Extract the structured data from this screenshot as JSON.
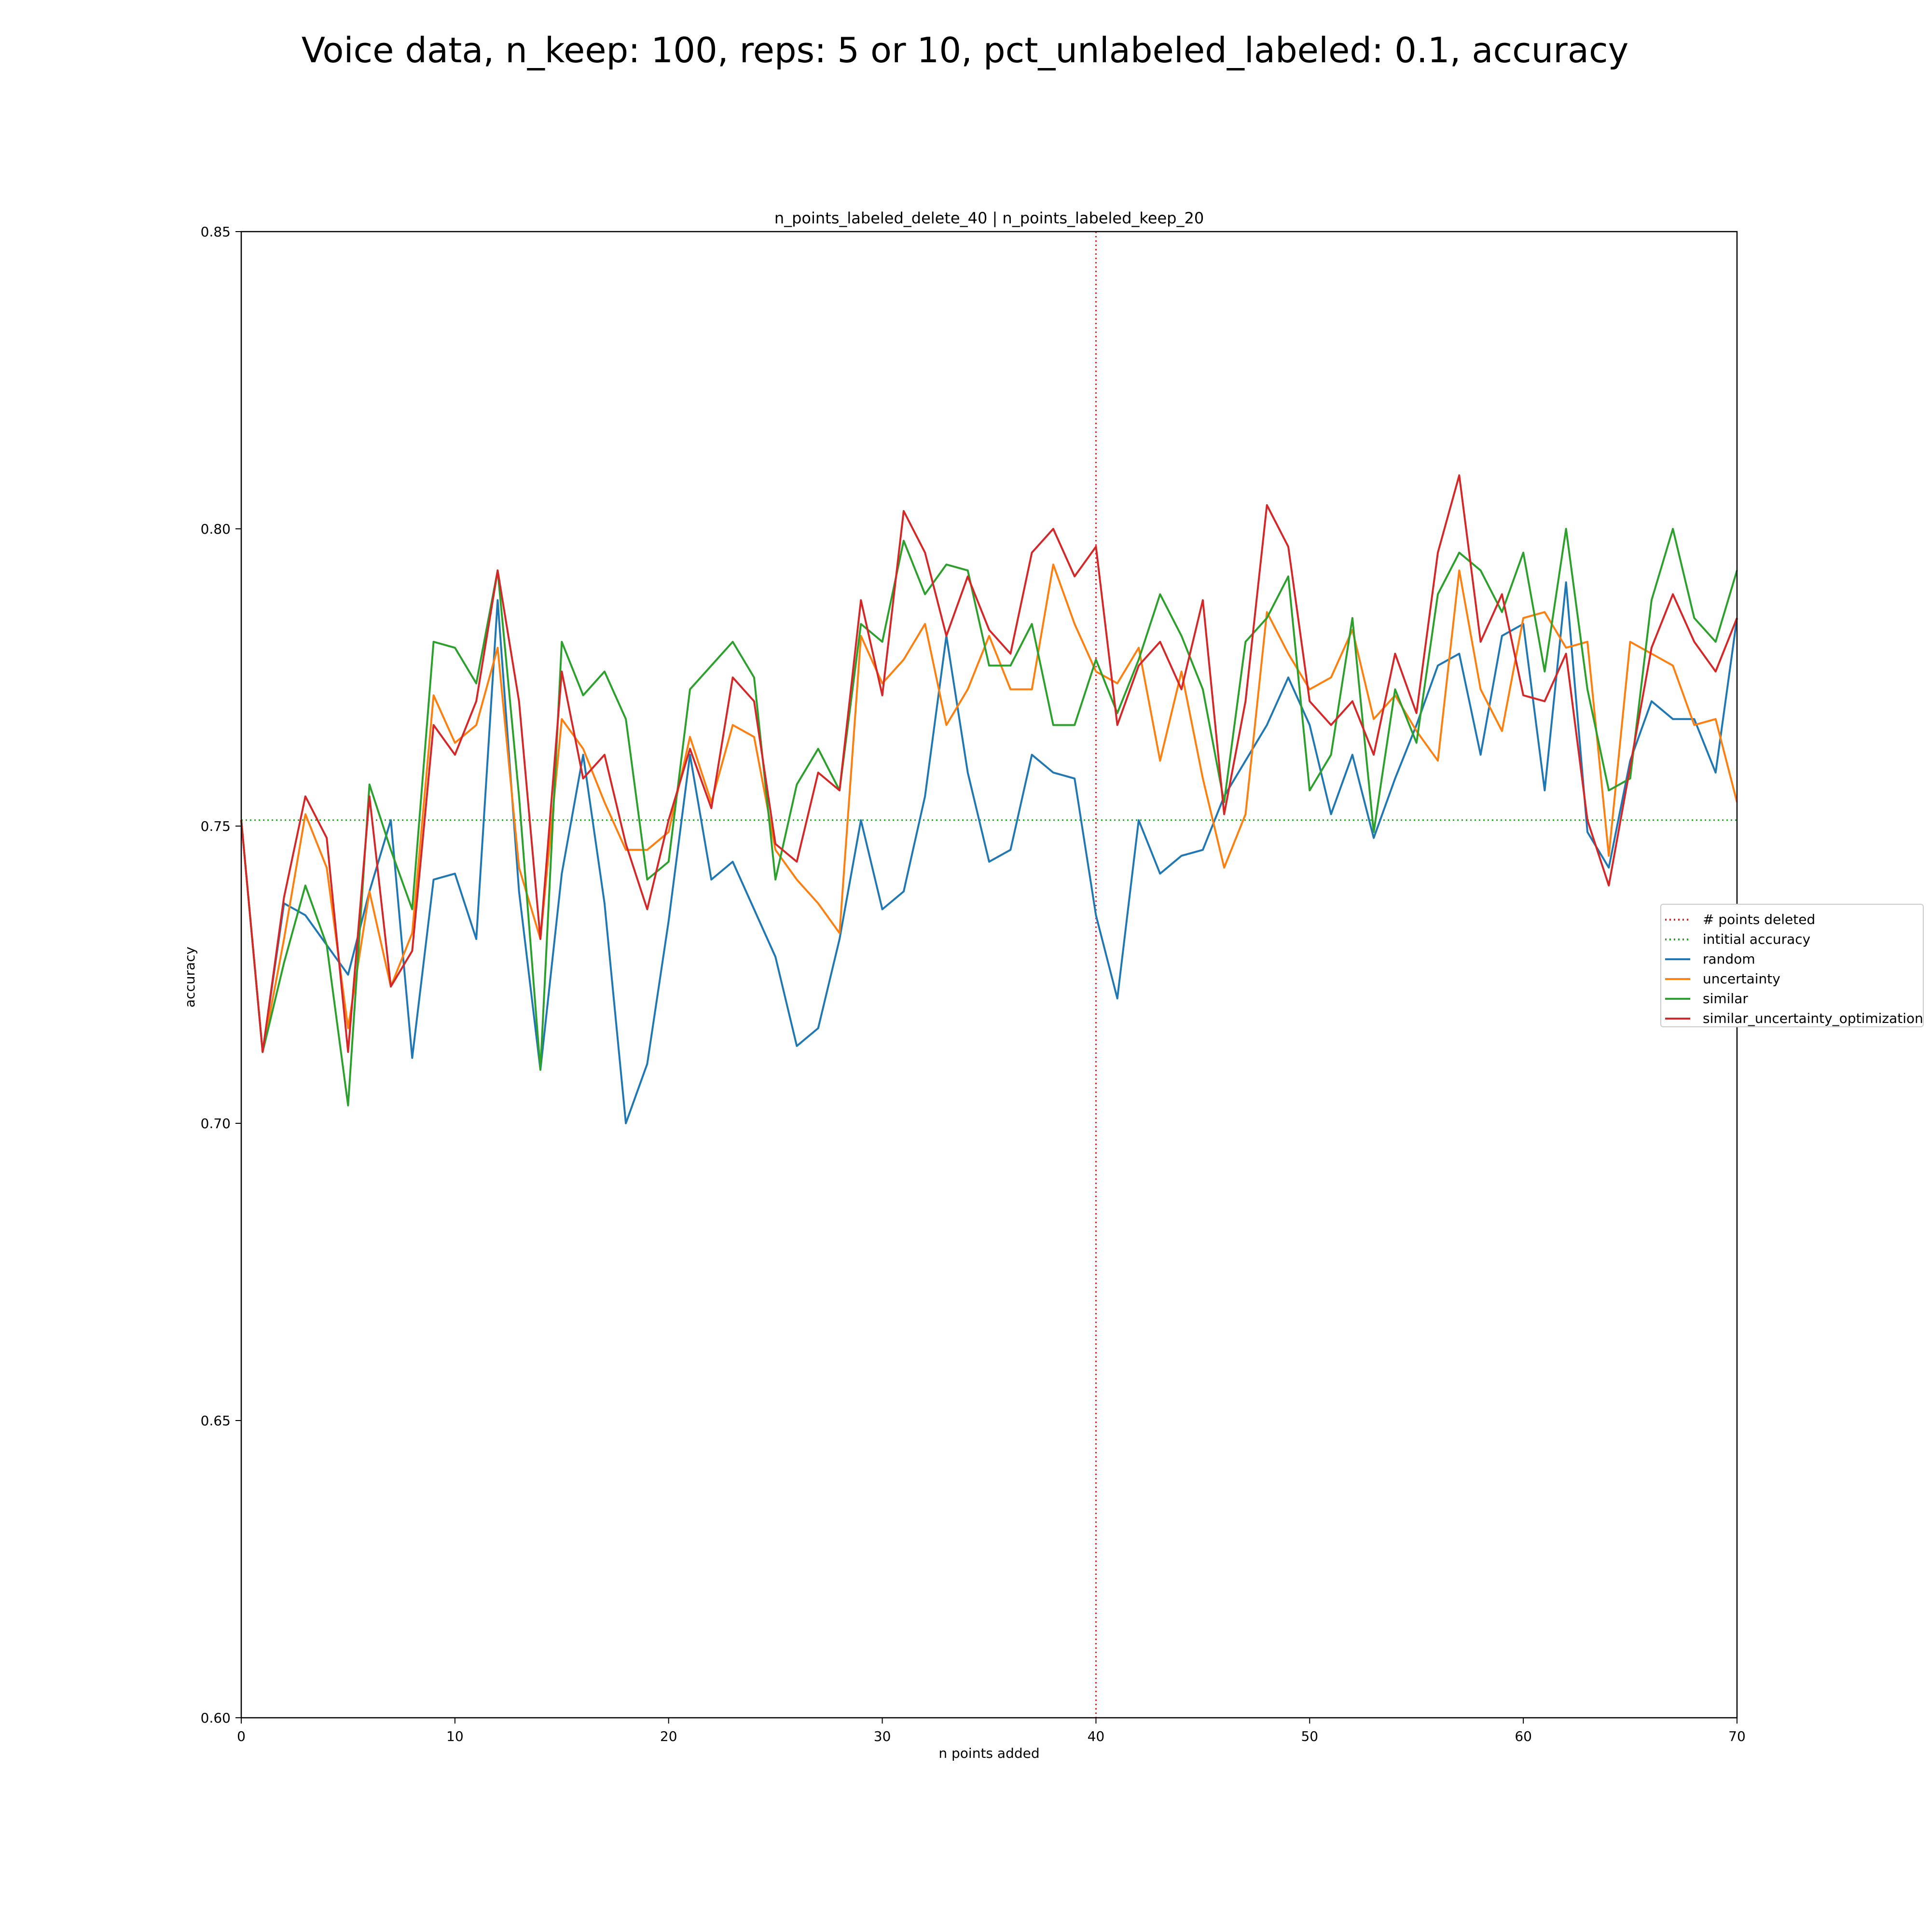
{
  "figure": {
    "suptitle": "Voice data, n_keep: 100, reps: 5 or 10, pct_unlabeled_labeled: 0.1, accuracy"
  },
  "chart_data": {
    "type": "line",
    "title": "n_points_labeled_delete_40 | n_points_labeled_keep_20",
    "xlabel": "n points added",
    "ylabel": "accuracy",
    "xlim": [
      0,
      70
    ],
    "ylim": [
      0.6,
      0.85
    ],
    "xticks": [
      0,
      10,
      20,
      30,
      40,
      50,
      60,
      70
    ],
    "xtick_labels": [
      "0",
      "10",
      "20",
      "30",
      "40",
      "50",
      "60",
      "70"
    ],
    "yticks": [
      0.6,
      0.65,
      0.7,
      0.75,
      0.8,
      0.85
    ],
    "ytick_labels": [
      "0.60",
      "0.65",
      "0.70",
      "0.75",
      "0.80",
      "0.85"
    ],
    "grid": false,
    "legend_position": "right, outside plot area",
    "reference_lines": [
      {
        "name": "# points deleted",
        "orientation": "vertical",
        "x": 40,
        "style": "dotted",
        "color": "#d62728"
      },
      {
        "name": "intitial accuracy",
        "orientation": "horizontal",
        "y": 0.751,
        "style": "dotted",
        "color": "#2ca02c"
      }
    ],
    "series": [
      {
        "name": "random",
        "color": "#1f77b4",
        "x": [
          0,
          1,
          2,
          3,
          4,
          5,
          6,
          7,
          8,
          9,
          10,
          11,
          12,
          13,
          14,
          15,
          16,
          17,
          18,
          19,
          20,
          21,
          22,
          23,
          24,
          25,
          26,
          27,
          28,
          29,
          30,
          31,
          32,
          33,
          34,
          35,
          36,
          37,
          38,
          39,
          40,
          41,
          42,
          43,
          44,
          45,
          46,
          47,
          48,
          49,
          50,
          51,
          52,
          53,
          54,
          55,
          56,
          57,
          58,
          59,
          60,
          61,
          62,
          63,
          64,
          65,
          66,
          67,
          68,
          69,
          70
        ],
        "values": [
          0.751,
          0.712,
          0.737,
          0.735,
          0.73,
          0.725,
          0.739,
          0.751,
          0.711,
          0.741,
          0.742,
          0.731,
          0.788,
          0.739,
          0.709,
          0.742,
          0.762,
          0.737,
          0.7,
          0.71,
          0.734,
          0.762,
          0.741,
          0.744,
          0.736,
          0.728,
          0.713,
          0.716,
          0.731,
          0.751,
          0.736,
          0.739,
          0.755,
          0.782,
          0.759,
          0.744,
          0.746,
          0.762,
          0.759,
          0.758,
          0.735,
          0.721,
          0.751,
          0.742,
          0.745,
          0.746,
          0.755,
          0.761,
          0.767,
          0.775,
          0.767,
          0.752,
          0.762,
          0.748,
          0.758,
          0.767,
          0.777,
          0.779,
          0.762,
          0.782,
          0.784,
          0.756,
          0.791,
          0.749,
          0.743,
          0.761,
          0.771,
          0.768,
          0.768,
          0.759,
          0.785
        ]
      },
      {
        "name": "uncertainty",
        "color": "#ff7f0e",
        "x": [
          0,
          1,
          2,
          3,
          4,
          5,
          6,
          7,
          8,
          9,
          10,
          11,
          12,
          13,
          14,
          15,
          16,
          17,
          18,
          19,
          20,
          21,
          22,
          23,
          24,
          25,
          26,
          27,
          28,
          29,
          30,
          31,
          32,
          33,
          34,
          35,
          36,
          37,
          38,
          39,
          40,
          41,
          42,
          43,
          44,
          45,
          46,
          47,
          48,
          49,
          50,
          51,
          52,
          53,
          54,
          55,
          56,
          57,
          58,
          59,
          60,
          61,
          62,
          63,
          64,
          65,
          66,
          67,
          68,
          69,
          70
        ],
        "values": [
          0.751,
          0.712,
          0.731,
          0.752,
          0.743,
          0.716,
          0.739,
          0.723,
          0.732,
          0.772,
          0.764,
          0.767,
          0.78,
          0.743,
          0.731,
          0.768,
          0.763,
          0.754,
          0.746,
          0.746,
          0.749,
          0.765,
          0.754,
          0.767,
          0.765,
          0.746,
          0.741,
          0.737,
          0.732,
          0.782,
          0.774,
          0.778,
          0.784,
          0.767,
          0.773,
          0.782,
          0.773,
          0.773,
          0.794,
          0.784,
          0.776,
          0.774,
          0.78,
          0.761,
          0.776,
          0.758,
          0.743,
          0.752,
          0.786,
          0.779,
          0.773,
          0.775,
          0.783,
          0.768,
          0.772,
          0.766,
          0.761,
          0.793,
          0.773,
          0.766,
          0.785,
          0.786,
          0.78,
          0.781,
          0.745,
          0.781,
          0.779,
          0.777,
          0.767,
          0.768,
          0.754
        ]
      },
      {
        "name": "similar",
        "color": "#2ca02c",
        "x": [
          0,
          1,
          2,
          3,
          4,
          5,
          6,
          7,
          8,
          9,
          10,
          11,
          12,
          13,
          14,
          15,
          16,
          17,
          18,
          19,
          20,
          21,
          22,
          23,
          24,
          25,
          26,
          27,
          28,
          29,
          30,
          31,
          32,
          33,
          34,
          35,
          36,
          37,
          38,
          39,
          40,
          41,
          42,
          43,
          44,
          45,
          46,
          47,
          48,
          49,
          50,
          51,
          52,
          53,
          54,
          55,
          56,
          57,
          58,
          59,
          60,
          61,
          62,
          63,
          64,
          65,
          66,
          67,
          68,
          69,
          70
        ],
        "values": [
          0.751,
          0.712,
          0.727,
          0.74,
          0.73,
          0.703,
          0.757,
          0.746,
          0.736,
          0.781,
          0.78,
          0.774,
          0.793,
          0.755,
          0.709,
          0.781,
          0.772,
          0.776,
          0.768,
          0.741,
          0.744,
          0.773,
          0.777,
          0.781,
          0.775,
          0.741,
          0.757,
          0.763,
          0.756,
          0.784,
          0.781,
          0.798,
          0.789,
          0.794,
          0.793,
          0.777,
          0.777,
          0.784,
          0.767,
          0.767,
          0.778,
          0.769,
          0.778,
          0.789,
          0.782,
          0.773,
          0.754,
          0.781,
          0.785,
          0.792,
          0.756,
          0.762,
          0.785,
          0.749,
          0.773,
          0.764,
          0.789,
          0.796,
          0.793,
          0.786,
          0.796,
          0.776,
          0.8,
          0.773,
          0.756,
          0.758,
          0.788,
          0.8,
          0.785,
          0.781,
          0.793
        ]
      },
      {
        "name": "similar_uncertainty_optimization",
        "color": "#d62728",
        "x": [
          0,
          1,
          2,
          3,
          4,
          5,
          6,
          7,
          8,
          9,
          10,
          11,
          12,
          13,
          14,
          15,
          16,
          17,
          18,
          19,
          20,
          21,
          22,
          23,
          24,
          25,
          26,
          27,
          28,
          29,
          30,
          31,
          32,
          33,
          34,
          35,
          36,
          37,
          38,
          39,
          40,
          41,
          42,
          43,
          44,
          45,
          46,
          47,
          48,
          49,
          50,
          51,
          52,
          53,
          54,
          55,
          56,
          57,
          58,
          59,
          60,
          61,
          62,
          63,
          64,
          65,
          66,
          67,
          68,
          69,
          70
        ],
        "values": [
          0.751,
          0.712,
          0.738,
          0.755,
          0.748,
          0.712,
          0.755,
          0.723,
          0.729,
          0.767,
          0.762,
          0.771,
          0.793,
          0.771,
          0.731,
          0.776,
          0.758,
          0.762,
          0.747,
          0.736,
          0.751,
          0.763,
          0.753,
          0.775,
          0.771,
          0.747,
          0.744,
          0.759,
          0.756,
          0.788,
          0.772,
          0.803,
          0.796,
          0.782,
          0.792,
          0.783,
          0.779,
          0.796,
          0.8,
          0.792,
          0.797,
          0.767,
          0.777,
          0.781,
          0.773,
          0.788,
          0.752,
          0.771,
          0.804,
          0.797,
          0.771,
          0.767,
          0.771,
          0.762,
          0.779,
          0.769,
          0.796,
          0.809,
          0.781,
          0.789,
          0.772,
          0.771,
          0.779,
          0.751,
          0.74,
          0.76,
          0.78,
          0.789,
          0.781,
          0.776,
          0.785
        ]
      }
    ]
  },
  "legend": {
    "items": [
      {
        "label": "# points deleted",
        "color": "#d62728",
        "style": "dotted"
      },
      {
        "label": "intitial accuracy",
        "color": "#2ca02c",
        "style": "dotted"
      },
      {
        "label": "random",
        "color": "#1f77b4",
        "style": "solid"
      },
      {
        "label": "uncertainty",
        "color": "#ff7f0e",
        "style": "solid"
      },
      {
        "label": "similar",
        "color": "#2ca02c",
        "style": "solid"
      },
      {
        "label": "similar_uncertainty_optimization",
        "color": "#d62728",
        "style": "solid"
      }
    ]
  }
}
